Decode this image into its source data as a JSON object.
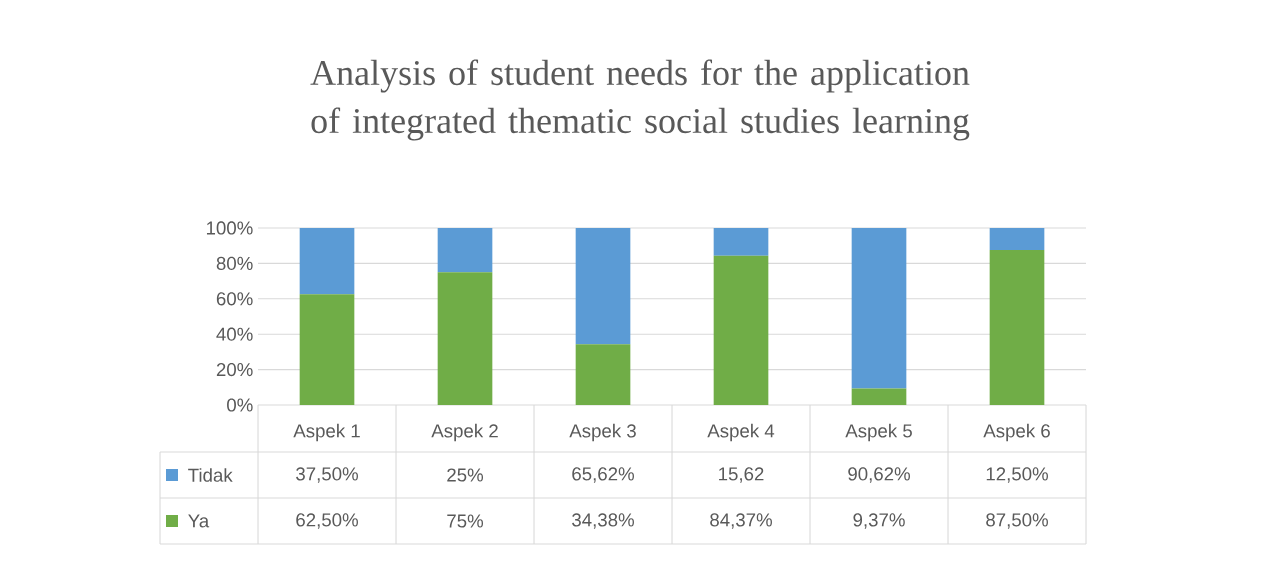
{
  "chart_data": {
    "type": "bar",
    "stacked": true,
    "title": "Analysis of student needs for the application of integrated thematic social studies learning",
    "categories": [
      "Aspek 1",
      "Aspek 2",
      "Aspek 3",
      "Aspek 4",
      "Aspek 5",
      "Aspek 6"
    ],
    "series": [
      {
        "name": "Ya",
        "color": "#70ad47",
        "values": [
          62.5,
          75,
          34.38,
          84.37,
          9.37,
          87.5
        ],
        "value_labels": [
          "62,50%",
          "75%",
          "34,38%",
          "84,37%",
          "9,37%",
          "87,50%"
        ]
      },
      {
        "name": "Tidak",
        "color": "#5b9bd5",
        "values": [
          37.5,
          25,
          65.62,
          15.62,
          90.62,
          12.5
        ],
        "value_labels": [
          "37,50%",
          "25%",
          "65,62%",
          "15,62",
          "90,62%",
          "12,50%"
        ]
      }
    ],
    "ylim": [
      0,
      100
    ],
    "yticks": [
      {
        "value": 0,
        "label": "0%"
      },
      {
        "value": 20,
        "label": "20%"
      },
      {
        "value": 40,
        "label": "40%"
      },
      {
        "value": 60,
        "label": "60%"
      },
      {
        "value": 80,
        "label": "80%"
      },
      {
        "value": 100,
        "label": "100%"
      }
    ],
    "grid": "y",
    "legend": "bottom"
  }
}
